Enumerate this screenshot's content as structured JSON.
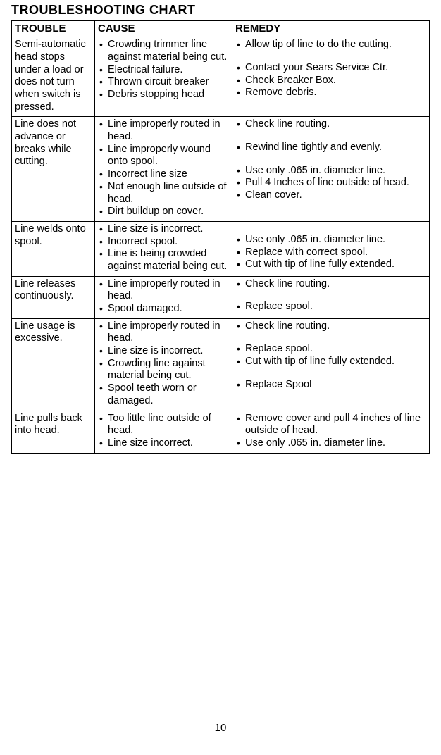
{
  "title": "TROUBLESHOOTING CHART",
  "headers": {
    "c1": "TROUBLE",
    "c2": "CAUSE",
    "c3": "REMEDY"
  },
  "rows": [
    {
      "trouble": "Semi-automatic head stops under a load or does not turn when switch is pressed.",
      "cause": [
        {
          "t": "Crowding trimmer line against material being cut."
        },
        {
          "t": "Electrical failure."
        },
        {
          "t": "Thrown circuit breaker"
        },
        {
          "t": "Debris stopping head"
        }
      ],
      "remedy": [
        {
          "t": "Allow tip of line to do the cutting."
        },
        {
          "t": "Contact your Sears Service Ctr.",
          "gap": true
        },
        {
          "t": "Check Breaker Box."
        },
        {
          "t": "Remove debris."
        }
      ]
    },
    {
      "trouble": "Line does not advance or breaks while cutting.",
      "cause": [
        {
          "t": "Line improperly routed in head."
        },
        {
          "t": "Line improperly wound onto spool."
        },
        {
          "t": "Incorrect line size"
        },
        {
          "t": "Not enough line outside of head."
        },
        {
          "t": "Dirt buildup on cover."
        }
      ],
      "remedy": [
        {
          "t": "Check line routing."
        },
        {
          "t": "Rewind line tightly and evenly.",
          "gap": true
        },
        {
          "t": "Use only .065 in. diameter line.",
          "gap": true
        },
        {
          "t": "Pull 4 Inches of line outside of head."
        },
        {
          "t": "Clean cover."
        }
      ]
    },
    {
      "trouble": "Line welds onto spool.",
      "cause": [
        {
          "t": "Line size is incorrect."
        },
        {
          "t": "Incorrect spool."
        },
        {
          "t": "Line is being crowded against material being cut."
        }
      ],
      "remedy": [
        {
          "t": "Use only .065 in. diameter line.",
          "gap": true
        },
        {
          "t": "Replace with correct spool."
        },
        {
          "t": "Cut with tip of line fully extended."
        }
      ]
    },
    {
      "trouble": "Line releases continuously.",
      "cause": [
        {
          "t": "Line improperly routed in head."
        },
        {
          "t": "Spool damaged."
        }
      ],
      "remedy": [
        {
          "t": "Check line routing."
        },
        {
          "t": "Replace spool.",
          "gap": true
        }
      ]
    },
    {
      "trouble": "Line usage is excessive.",
      "cause": [
        {
          "t": "Line improperly routed in head."
        },
        {
          "t": "Line size is incorrect."
        },
        {
          "t": "Crowding line against material being cut."
        },
        {
          "t": "Spool teeth worn or damaged."
        }
      ],
      "remedy": [
        {
          "t": "Check line routing."
        },
        {
          "t": "Replace spool.",
          "gap": true
        },
        {
          "t": "Cut with tip of line fully extended."
        },
        {
          "t": "Replace Spool",
          "gap": true
        }
      ]
    },
    {
      "trouble": "Line pulls back into head.",
      "cause": [
        {
          "t": "Too little line outside of head."
        },
        {
          "t": "Line size incorrect."
        }
      ],
      "remedy": [
        {
          "t": "Remove cover and pull 4 inches of line outside of head."
        },
        {
          "t": "Use only .065 in. diameter line."
        }
      ]
    }
  ],
  "pageNumber": "10"
}
